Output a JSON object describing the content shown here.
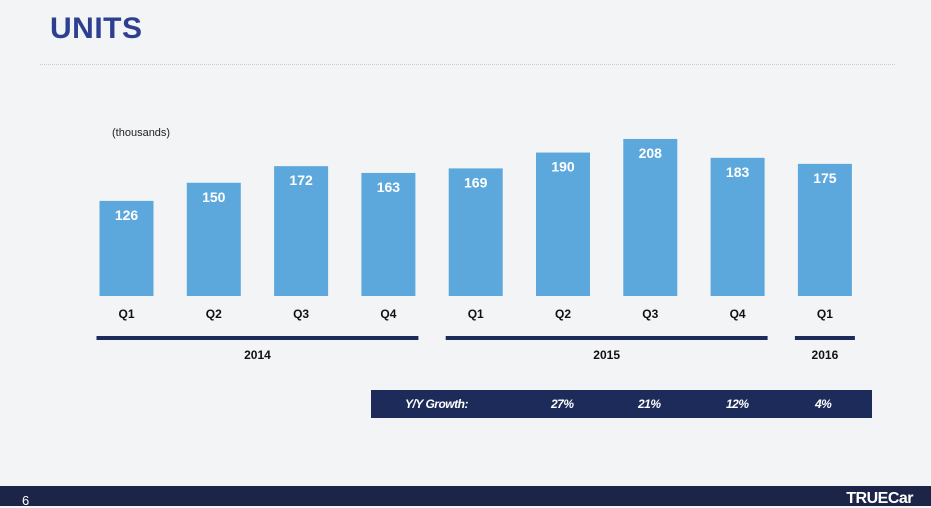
{
  "slide": {
    "title": "UNITS",
    "page_number": "6",
    "brand": "TRUECar"
  },
  "chart_data": {
    "type": "bar",
    "unit_label": "(thousands)",
    "categories": [
      "Q1",
      "Q2",
      "Q3",
      "Q4",
      "Q1",
      "Q2",
      "Q3",
      "Q4",
      "Q1"
    ],
    "values": [
      126,
      150,
      172,
      163,
      169,
      190,
      208,
      183,
      175
    ],
    "years": [
      {
        "label": "2014",
        "from": 0,
        "to": 3
      },
      {
        "label": "2015",
        "from": 4,
        "to": 7
      },
      {
        "label": "2016",
        "from": 8,
        "to": 8
      }
    ],
    "colors": {
      "bar": "#5ca8dc",
      "bracket": "#1d2b5a",
      "title": "#2d3f8f"
    }
  },
  "growth": {
    "label": "Y/Y Growth:",
    "values": [
      "27%",
      "21%",
      "12%",
      "4%"
    ]
  }
}
